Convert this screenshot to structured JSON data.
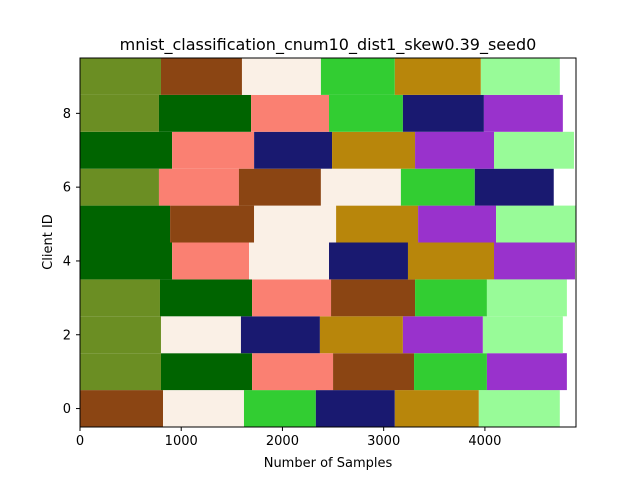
{
  "chart_data": {
    "type": "bar",
    "orientation": "horizontal-stacked",
    "title": "mnist_classification_cnum10_dist1_skew0.39_seed0",
    "xlabel": "Number of Samples",
    "ylabel": "Client ID",
    "xlim": [
      0,
      4900
    ],
    "ylim": [
      -0.5,
      9.5
    ],
    "x_ticks": [
      0,
      1000,
      2000,
      3000,
      4000
    ],
    "y_ticks": [
      0,
      2,
      4,
      6,
      8
    ],
    "grid": false,
    "legend": "none",
    "label_colors": {
      "0": "#6b8e23",
      "1": "#8b4513",
      "2": "#faf0e6",
      "3": "#32cd32",
      "4": "#b8860b",
      "5": "#98fb98",
      "6": "#006400",
      "7": "#fa8072",
      "8": "#191970",
      "9": "#9932cc"
    },
    "clients": [
      {
        "id": 0,
        "segments": [
          {
            "label": 1,
            "count": 820
          },
          {
            "label": 2,
            "count": 800
          },
          {
            "label": 3,
            "count": 710
          },
          {
            "label": 8,
            "count": 780
          },
          {
            "label": 4,
            "count": 830
          },
          {
            "label": 5,
            "count": 800
          }
        ]
      },
      {
        "id": 1,
        "segments": [
          {
            "label": 0,
            "count": 800
          },
          {
            "label": 6,
            "count": 900
          },
          {
            "label": 7,
            "count": 800
          },
          {
            "label": 1,
            "count": 800
          },
          {
            "label": 3,
            "count": 720
          },
          {
            "label": 9,
            "count": 790
          }
        ]
      },
      {
        "id": 2,
        "segments": [
          {
            "label": 0,
            "count": 800
          },
          {
            "label": 2,
            "count": 790
          },
          {
            "label": 8,
            "count": 780
          },
          {
            "label": 4,
            "count": 820
          },
          {
            "label": 9,
            "count": 790
          },
          {
            "label": 5,
            "count": 790
          }
        ]
      },
      {
        "id": 3,
        "segments": [
          {
            "label": 0,
            "count": 790
          },
          {
            "label": 6,
            "count": 910
          },
          {
            "label": 7,
            "count": 780
          },
          {
            "label": 1,
            "count": 830
          },
          {
            "label": 3,
            "count": 710
          },
          {
            "label": 5,
            "count": 790
          }
        ]
      },
      {
        "id": 4,
        "segments": [
          {
            "label": 6,
            "count": 910
          },
          {
            "label": 7,
            "count": 760
          },
          {
            "label": 2,
            "count": 790
          },
          {
            "label": 8,
            "count": 780
          },
          {
            "label": 4,
            "count": 850
          },
          {
            "label": 9,
            "count": 800
          }
        ]
      },
      {
        "id": 5,
        "segments": [
          {
            "label": 6,
            "count": 890
          },
          {
            "label": 1,
            "count": 830
          },
          {
            "label": 2,
            "count": 810
          },
          {
            "label": 4,
            "count": 810
          },
          {
            "label": 9,
            "count": 770
          },
          {
            "label": 5,
            "count": 790
          }
        ]
      },
      {
        "id": 6,
        "segments": [
          {
            "label": 0,
            "count": 780
          },
          {
            "label": 7,
            "count": 790
          },
          {
            "label": 1,
            "count": 810
          },
          {
            "label": 2,
            "count": 790
          },
          {
            "label": 3,
            "count": 730
          },
          {
            "label": 8,
            "count": 780
          }
        ]
      },
      {
        "id": 7,
        "segments": [
          {
            "label": 6,
            "count": 910
          },
          {
            "label": 7,
            "count": 810
          },
          {
            "label": 8,
            "count": 770
          },
          {
            "label": 4,
            "count": 820
          },
          {
            "label": 9,
            "count": 780
          },
          {
            "label": 5,
            "count": 790
          }
        ]
      },
      {
        "id": 8,
        "segments": [
          {
            "label": 0,
            "count": 780
          },
          {
            "label": 6,
            "count": 910
          },
          {
            "label": 7,
            "count": 770
          },
          {
            "label": 3,
            "count": 730
          },
          {
            "label": 8,
            "count": 800
          },
          {
            "label": 9,
            "count": 780
          }
        ]
      },
      {
        "id": 9,
        "segments": [
          {
            "label": 0,
            "count": 800
          },
          {
            "label": 1,
            "count": 800
          },
          {
            "label": 2,
            "count": 780
          },
          {
            "label": 3,
            "count": 730
          },
          {
            "label": 4,
            "count": 850
          },
          {
            "label": 5,
            "count": 780
          }
        ]
      }
    ]
  }
}
